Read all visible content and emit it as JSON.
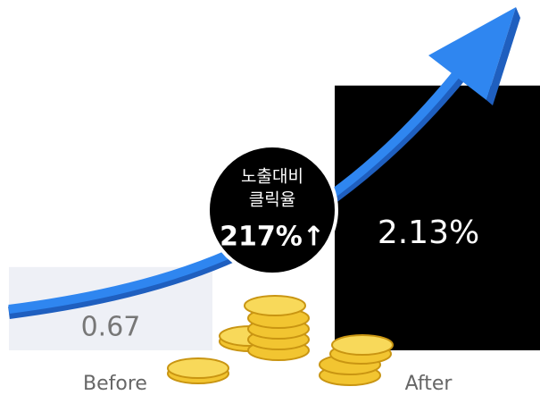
{
  "chart_data": {
    "type": "bar",
    "categories": [
      "Before",
      "After"
    ],
    "values": [
      0.67,
      2.13
    ],
    "value_labels": [
      "0.67",
      "2.13%"
    ],
    "colors": [
      "#eef0f6",
      "#000000"
    ],
    "ylim": [
      0,
      2.2
    ],
    "annotation": {
      "lines": [
        "노출대비",
        "클릭율"
      ],
      "highlight": "217%↑"
    }
  }
}
